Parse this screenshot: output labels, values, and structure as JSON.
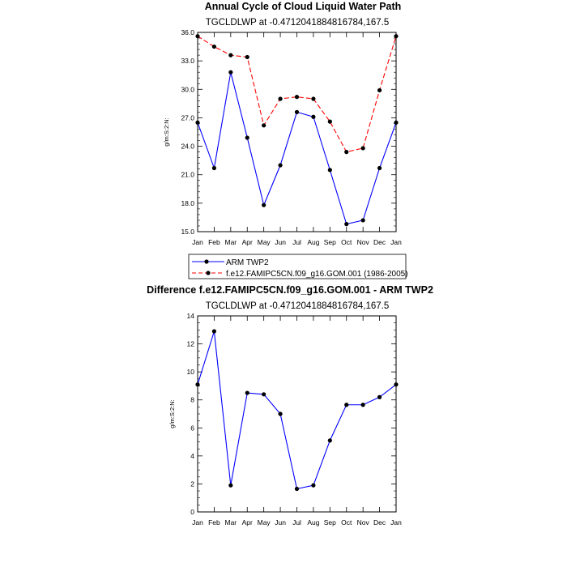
{
  "chart_data": [
    {
      "type": "line",
      "title": "Annual Cycle of Cloud Liquid Water Path",
      "subtitle": "TGCLDLWP at -0.4712041884816784,167.5",
      "ylabel": "g/m:S:2:N:",
      "xlabel": "",
      "ylim": [
        15.0,
        36.0
      ],
      "yticks": [
        "15.0",
        "18.0",
        "21.0",
        "24.0",
        "27.0",
        "30.0",
        "33.0",
        "36.0"
      ],
      "ytick_values": [
        15,
        18,
        21,
        24,
        27,
        30,
        33,
        36
      ],
      "categories": [
        "Jan",
        "Feb",
        "Mar",
        "Apr",
        "May",
        "Jun",
        "Jul",
        "Aug",
        "Sep",
        "Oct",
        "Nov",
        "Dec",
        "Jan"
      ],
      "series": [
        {
          "name": "ARM TWP2",
          "color": "#0000ff",
          "dash": "solid",
          "values": [
            26.5,
            21.7,
            31.8,
            24.9,
            17.8,
            22.0,
            27.6,
            27.1,
            21.5,
            15.8,
            16.2,
            21.7,
            26.5
          ]
        },
        {
          "name": "f.e12.FAMIPC5CN.f09_g16.GOM.001 (1986-2005)",
          "color": "#ff0000",
          "dash": "dashed",
          "values": [
            35.6,
            34.5,
            33.6,
            33.4,
            26.2,
            29.0,
            29.2,
            29.0,
            26.6,
            23.4,
            23.8,
            29.9,
            35.6
          ]
        }
      ],
      "legend_position": "bottom"
    },
    {
      "type": "line",
      "title": "Difference f.e12.FAMIPC5CN.f09_g16.GOM.001 - ARM TWP2",
      "subtitle": "TGCLDLWP at -0.4712041884816784,167.5",
      "ylabel": "g/m:S:2:N:",
      "xlabel": "",
      "ylim": [
        0,
        14
      ],
      "yticks": [
        "0",
        "2",
        "4",
        "6",
        "8",
        "10",
        "12",
        "14"
      ],
      "ytick_values": [
        0,
        2,
        4,
        6,
        8,
        10,
        12,
        14
      ],
      "categories": [
        "Jan",
        "Feb",
        "Mar",
        "Apr",
        "May",
        "Jun",
        "Jul",
        "Aug",
        "Sep",
        "Oct",
        "Nov",
        "Dec",
        "Jan"
      ],
      "series": [
        {
          "name": "Difference",
          "color": "#0000ff",
          "dash": "solid",
          "values": [
            9.1,
            12.9,
            1.9,
            8.5,
            8.4,
            7.0,
            1.65,
            1.9,
            5.1,
            7.65,
            7.65,
            8.2,
            9.1
          ]
        }
      ]
    }
  ]
}
